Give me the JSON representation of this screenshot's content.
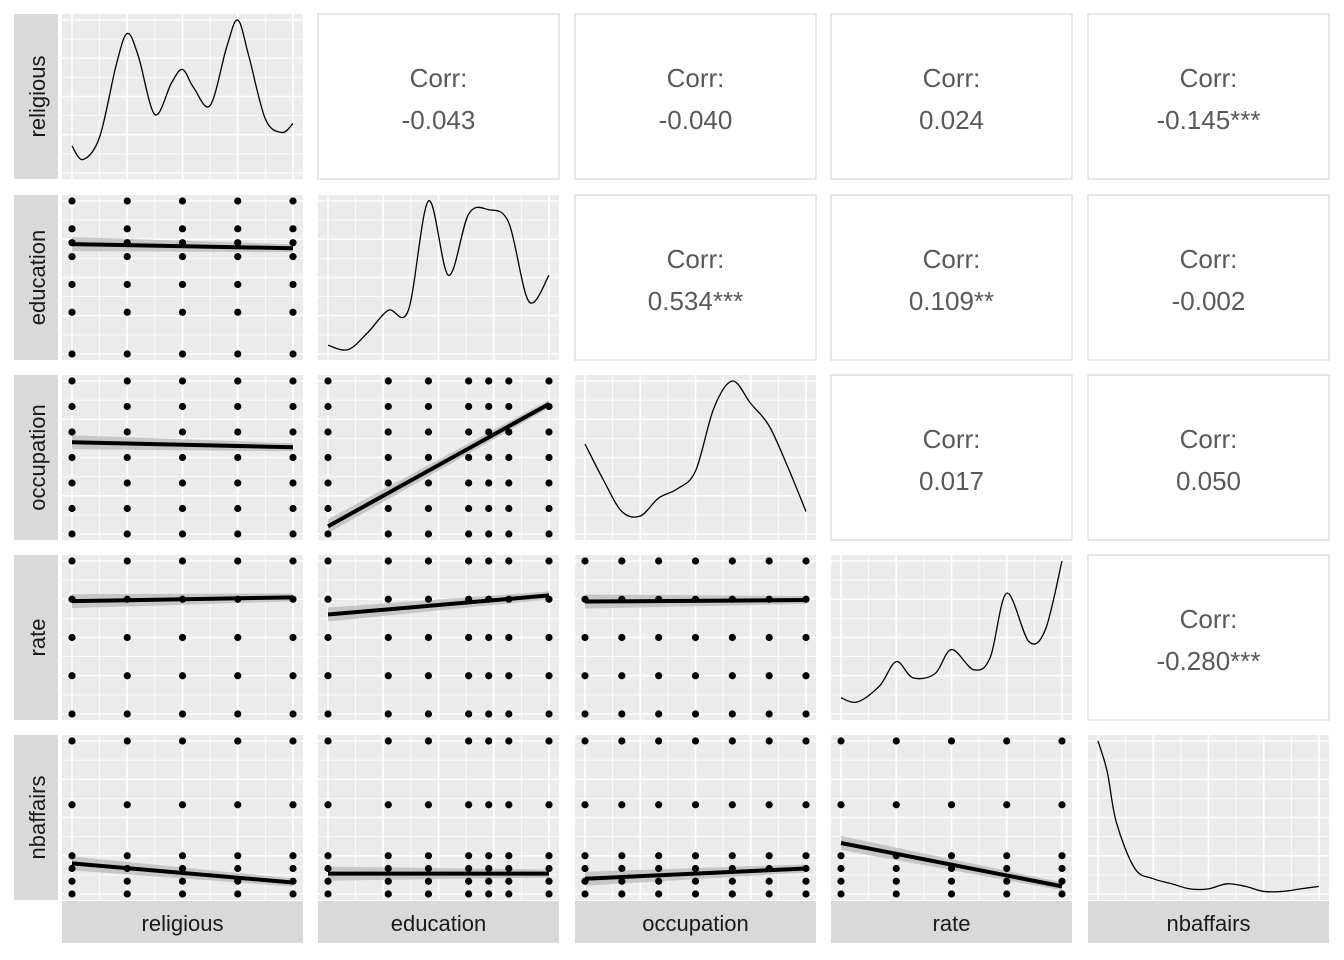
{
  "chart_data": {
    "type": "scatter",
    "variables": [
      "religious",
      "education",
      "occupation",
      "rate",
      "nbaffairs"
    ],
    "corr_label": "Corr:",
    "correlations": [
      {
        "row": "religious",
        "col": "education",
        "text": "-0.043"
      },
      {
        "row": "religious",
        "col": "occupation",
        "text": "-0.040"
      },
      {
        "row": "religious",
        "col": "rate",
        "text": "0.024"
      },
      {
        "row": "religious",
        "col": "nbaffairs",
        "text": "-0.145***"
      },
      {
        "row": "education",
        "col": "occupation",
        "text": "0.534***"
      },
      {
        "row": "education",
        "col": "rate",
        "text": "0.109**"
      },
      {
        "row": "education",
        "col": "nbaffairs",
        "text": "-0.002"
      },
      {
        "row": "occupation",
        "col": "rate",
        "text": "0.017"
      },
      {
        "row": "occupation",
        "col": "nbaffairs",
        "text": "0.050"
      },
      {
        "row": "rate",
        "col": "nbaffairs",
        "text": "-0.280***"
      }
    ],
    "ranges": {
      "religious": [
        1,
        5
      ],
      "education": [
        9,
        20
      ],
      "occupation": [
        1,
        7
      ],
      "rate": [
        1,
        5
      ],
      "nbaffairs": [
        0,
        12
      ]
    },
    "values": {
      "religious": [
        1,
        2,
        3,
        4,
        5
      ],
      "education": [
        9,
        12,
        14,
        16,
        17,
        18,
        20
      ],
      "occupation": [
        1,
        2,
        3,
        4,
        5,
        6,
        7
      ],
      "rate": [
        1,
        2,
        3,
        4,
        5
      ],
      "nbaffairs": [
        0,
        1,
        2,
        3,
        7,
        12
      ]
    },
    "densities": {
      "religious": [
        [
          1,
          0.06
        ],
        [
          1.2,
          0.03
        ],
        [
          1.5,
          0.08
        ],
        [
          1.8,
          0.24
        ],
        [
          2.0,
          0.31
        ],
        [
          2.2,
          0.26
        ],
        [
          2.5,
          0.13
        ],
        [
          2.8,
          0.2
        ],
        [
          3.0,
          0.23
        ],
        [
          3.2,
          0.19
        ],
        [
          3.5,
          0.15
        ],
        [
          3.8,
          0.28
        ],
        [
          4.0,
          0.34
        ],
        [
          4.2,
          0.26
        ],
        [
          4.5,
          0.12
        ],
        [
          4.8,
          0.09
        ],
        [
          5.0,
          0.11
        ]
      ],
      "education": [
        [
          9,
          0.02
        ],
        [
          10,
          0.01
        ],
        [
          11,
          0.05
        ],
        [
          12,
          0.1
        ],
        [
          13,
          0.1
        ],
        [
          14,
          0.35
        ],
        [
          15,
          0.18
        ],
        [
          16,
          0.32
        ],
        [
          17,
          0.33
        ],
        [
          18,
          0.3
        ],
        [
          19,
          0.12
        ],
        [
          20,
          0.18
        ]
      ],
      "occupation": [
        [
          1,
          0.2
        ],
        [
          1.5,
          0.12
        ],
        [
          2,
          0.05
        ],
        [
          2.5,
          0.04
        ],
        [
          3,
          0.08
        ],
        [
          3.5,
          0.1
        ],
        [
          4,
          0.14
        ],
        [
          4.5,
          0.28
        ],
        [
          5,
          0.34
        ],
        [
          5.5,
          0.29
        ],
        [
          6,
          0.24
        ],
        [
          6.5,
          0.15
        ],
        [
          7,
          0.05
        ]
      ],
      "rate": [
        [
          1,
          0.04
        ],
        [
          1.3,
          0.03
        ],
        [
          1.7,
          0.07
        ],
        [
          2.0,
          0.13
        ],
        [
          2.3,
          0.09
        ],
        [
          2.7,
          0.1
        ],
        [
          3.0,
          0.16
        ],
        [
          3.4,
          0.11
        ],
        [
          3.7,
          0.14
        ],
        [
          4.0,
          0.3
        ],
        [
          4.4,
          0.18
        ],
        [
          4.7,
          0.21
        ],
        [
          5.0,
          0.38
        ]
      ],
      "nbaffairs": [
        [
          0,
          0.3
        ],
        [
          0.5,
          0.24
        ],
        [
          1,
          0.14
        ],
        [
          2,
          0.05
        ],
        [
          3,
          0.03
        ],
        [
          4,
          0.02
        ],
        [
          5,
          0.01
        ],
        [
          6,
          0.01
        ],
        [
          7,
          0.02
        ],
        [
          8,
          0.015
        ],
        [
          9,
          0.005
        ],
        [
          10,
          0.005
        ],
        [
          11,
          0.01
        ],
        [
          12,
          0.015
        ]
      ]
    },
    "fits": {
      "education_vs_religious": [
        [
          1,
          16.9
        ],
        [
          5,
          16.6
        ]
      ],
      "occupation_vs_religious": [
        [
          1,
          4.6
        ],
        [
          5,
          4.4
        ]
      ],
      "occupation_vs_education": [
        [
          9,
          1.3
        ],
        [
          20,
          6.1
        ]
      ],
      "rate_vs_religious": [
        [
          1,
          3.95
        ],
        [
          5,
          4.05
        ]
      ],
      "rate_vs_education": [
        [
          9,
          3.6
        ],
        [
          20,
          4.1
        ]
      ],
      "rate_vs_occupation": [
        [
          1,
          3.94
        ],
        [
          7,
          3.98
        ]
      ],
      "nbaffairs_vs_religious": [
        [
          1,
          2.4
        ],
        [
          5,
          0.9
        ]
      ],
      "nbaffairs_vs_education": [
        [
          9,
          1.6
        ],
        [
          20,
          1.6
        ]
      ],
      "nbaffairs_vs_occupation": [
        [
          1,
          1.2
        ],
        [
          7,
          2.0
        ]
      ],
      "nbaffairs_vs_rate": [
        [
          1,
          4.0
        ],
        [
          5,
          0.6
        ]
      ]
    },
    "grid": true,
    "colors": {
      "panel": "#ebebeb",
      "strip": "#d9d9d9",
      "grid": "#ffffff",
      "point": "#000000",
      "text": "#1a1a1a",
      "corr_text": "#595959"
    }
  }
}
